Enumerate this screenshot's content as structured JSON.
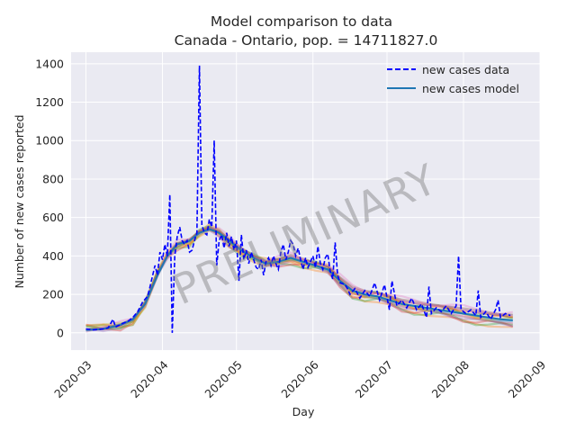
{
  "chart_data": {
    "type": "line",
    "title": "Model comparison to data",
    "subtitle": "Canada - Ontario, pop. = 14711827.0",
    "xlabel": "Day",
    "ylabel": "Number of new cases reported",
    "x_ticks": [
      "2020-03",
      "2020-04",
      "2020-05",
      "2020-06",
      "2020-07",
      "2020-08",
      "2020-09"
    ],
    "x_range": [
      "2020-02-24",
      "2020-09-01"
    ],
    "y_ticks": [
      0,
      200,
      400,
      600,
      800,
      1000,
      1200,
      1400
    ],
    "ylim": [
      -90,
      1460
    ],
    "grid": true,
    "legend_position": "top-right",
    "watermark": "PRELIMINARY",
    "colors": {
      "background": "#eaeaf2",
      "grid": "#ffffff",
      "data": "#0000ff",
      "model": "#1f77b4",
      "ensemble": [
        "#ff7f0e",
        "#2ca02c",
        "#d62728",
        "#9467bd",
        "#8c564b",
        "#e377c2",
        "#17becf",
        "#bcbd22"
      ]
    },
    "series": [
      {
        "name": "new cases data",
        "style": "dashed",
        "points": [
          [
            "2020-03-01",
            20
          ],
          [
            "2020-03-04",
            15
          ],
          [
            "2020-03-08",
            20
          ],
          [
            "2020-03-10",
            25
          ],
          [
            "2020-03-12",
            70
          ],
          [
            "2020-03-13",
            30
          ],
          [
            "2020-03-16",
            50
          ],
          [
            "2020-03-18",
            60
          ],
          [
            "2020-03-20",
            80
          ],
          [
            "2020-03-22",
            110
          ],
          [
            "2020-03-24",
            160
          ],
          [
            "2020-03-26",
            190
          ],
          [
            "2020-03-27",
            240
          ],
          [
            "2020-03-29",
            350
          ],
          [
            "2020-03-30",
            300
          ],
          [
            "2020-03-31",
            420
          ],
          [
            "2020-04-01",
            380
          ],
          [
            "2020-04-02",
            460
          ],
          [
            "2020-04-03",
            400
          ],
          [
            "2020-04-04",
            720
          ],
          [
            "2020-04-05",
            0
          ],
          [
            "2020-04-06",
            400
          ],
          [
            "2020-04-07",
            500
          ],
          [
            "2020-04-08",
            550
          ],
          [
            "2020-04-09",
            480
          ],
          [
            "2020-04-10",
            460
          ],
          [
            "2020-04-11",
            480
          ],
          [
            "2020-04-12",
            420
          ],
          [
            "2020-04-13",
            430
          ],
          [
            "2020-04-14",
            480
          ],
          [
            "2020-04-15",
            520
          ],
          [
            "2020-04-16",
            1390
          ],
          [
            "2020-04-17",
            560
          ],
          [
            "2020-04-18",
            520
          ],
          [
            "2020-04-19",
            510
          ],
          [
            "2020-04-20",
            590
          ],
          [
            "2020-04-21",
            550
          ],
          [
            "2020-04-22",
            1000
          ],
          [
            "2020-04-23",
            350
          ],
          [
            "2020-04-24",
            480
          ],
          [
            "2020-04-25",
            510
          ],
          [
            "2020-04-26",
            440
          ],
          [
            "2020-04-27",
            520
          ],
          [
            "2020-04-28",
            450
          ],
          [
            "2020-04-29",
            500
          ],
          [
            "2020-04-30",
            430
          ],
          [
            "2020-05-01",
            480
          ],
          [
            "2020-05-02",
            270
          ],
          [
            "2020-05-03",
            510
          ],
          [
            "2020-05-04",
            380
          ],
          [
            "2020-05-05",
            430
          ],
          [
            "2020-05-06",
            360
          ],
          [
            "2020-05-07",
            420
          ],
          [
            "2020-05-08",
            380
          ],
          [
            "2020-05-09",
            340
          ],
          [
            "2020-05-10",
            330
          ],
          [
            "2020-05-11",
            380
          ],
          [
            "2020-05-12",
            300
          ],
          [
            "2020-05-13",
            370
          ],
          [
            "2020-05-14",
            390
          ],
          [
            "2020-05-15",
            350
          ],
          [
            "2020-05-16",
            400
          ],
          [
            "2020-05-17",
            360
          ],
          [
            "2020-05-18",
            330
          ],
          [
            "2020-05-19",
            420
          ],
          [
            "2020-05-20",
            460
          ],
          [
            "2020-05-21",
            380
          ],
          [
            "2020-05-22",
            420
          ],
          [
            "2020-05-23",
            480
          ],
          [
            "2020-05-24",
            460
          ],
          [
            "2020-05-25",
            400
          ],
          [
            "2020-05-26",
            440
          ],
          [
            "2020-05-27",
            380
          ],
          [
            "2020-05-28",
            330
          ],
          [
            "2020-05-29",
            390
          ],
          [
            "2020-05-30",
            340
          ],
          [
            "2020-06-01",
            400
          ],
          [
            "2020-06-02",
            340
          ],
          [
            "2020-06-03",
            450
          ],
          [
            "2020-06-04",
            360
          ],
          [
            "2020-06-05",
            330
          ],
          [
            "2020-06-06",
            390
          ],
          [
            "2020-06-07",
            410
          ],
          [
            "2020-06-08",
            320
          ],
          [
            "2020-06-09",
            280
          ],
          [
            "2020-06-10",
            470
          ],
          [
            "2020-06-11",
            300
          ],
          [
            "2020-06-12",
            260
          ],
          [
            "2020-06-14",
            250
          ],
          [
            "2020-06-15",
            230
          ],
          [
            "2020-06-16",
            200
          ],
          [
            "2020-06-18",
            230
          ],
          [
            "2020-06-20",
            180
          ],
          [
            "2020-06-22",
            220
          ],
          [
            "2020-06-24",
            190
          ],
          [
            "2020-06-26",
            260
          ],
          [
            "2020-06-28",
            170
          ],
          [
            "2020-06-30",
            250
          ],
          [
            "2020-07-02",
            120
          ],
          [
            "2020-07-03",
            270
          ],
          [
            "2020-07-05",
            140
          ],
          [
            "2020-07-07",
            170
          ],
          [
            "2020-07-09",
            130
          ],
          [
            "2020-07-11",
            180
          ],
          [
            "2020-07-13",
            120
          ],
          [
            "2020-07-15",
            150
          ],
          [
            "2020-07-17",
            80
          ],
          [
            "2020-07-18",
            240
          ],
          [
            "2020-07-19",
            100
          ],
          [
            "2020-07-21",
            130
          ],
          [
            "2020-07-23",
            110
          ],
          [
            "2020-07-25",
            140
          ],
          [
            "2020-07-27",
            100
          ],
          [
            "2020-07-29",
            140
          ],
          [
            "2020-07-30",
            400
          ],
          [
            "2020-07-31",
            120
          ],
          [
            "2020-08-02",
            100
          ],
          [
            "2020-08-04",
            120
          ],
          [
            "2020-08-06",
            90
          ],
          [
            "2020-08-07",
            220
          ],
          [
            "2020-08-08",
            80
          ],
          [
            "2020-08-10",
            110
          ],
          [
            "2020-08-12",
            70
          ],
          [
            "2020-08-14",
            120
          ],
          [
            "2020-08-15",
            170
          ],
          [
            "2020-08-16",
            80
          ],
          [
            "2020-08-18",
            100
          ],
          [
            "2020-08-20",
            90
          ]
        ]
      },
      {
        "name": "new cases model",
        "style": "solid",
        "points": [
          [
            "2020-03-01",
            15
          ],
          [
            "2020-03-08",
            20
          ],
          [
            "2020-03-15",
            40
          ],
          [
            "2020-03-20",
            70
          ],
          [
            "2020-03-25",
            150
          ],
          [
            "2020-03-30",
            300
          ],
          [
            "2020-04-03",
            400
          ],
          [
            "2020-04-07",
            460
          ],
          [
            "2020-04-12",
            480
          ],
          [
            "2020-04-16",
            520
          ],
          [
            "2020-04-20",
            540
          ],
          [
            "2020-04-24",
            520
          ],
          [
            "2020-04-28",
            480
          ],
          [
            "2020-05-03",
            430
          ],
          [
            "2020-05-08",
            390
          ],
          [
            "2020-05-13",
            360
          ],
          [
            "2020-05-18",
            370
          ],
          [
            "2020-05-23",
            390
          ],
          [
            "2020-05-28",
            370
          ],
          [
            "2020-06-02",
            350
          ],
          [
            "2020-06-07",
            330
          ],
          [
            "2020-06-12",
            270
          ],
          [
            "2020-06-17",
            220
          ],
          [
            "2020-06-22",
            200
          ],
          [
            "2020-06-27",
            190
          ],
          [
            "2020-07-02",
            170
          ],
          [
            "2020-07-07",
            150
          ],
          [
            "2020-07-12",
            140
          ],
          [
            "2020-07-17",
            130
          ],
          [
            "2020-07-22",
            120
          ],
          [
            "2020-07-27",
            110
          ],
          [
            "2020-08-01",
            100
          ],
          [
            "2020-08-06",
            90
          ],
          [
            "2020-08-11",
            80
          ],
          [
            "2020-08-16",
            70
          ],
          [
            "2020-08-21",
            65
          ]
        ]
      }
    ]
  }
}
